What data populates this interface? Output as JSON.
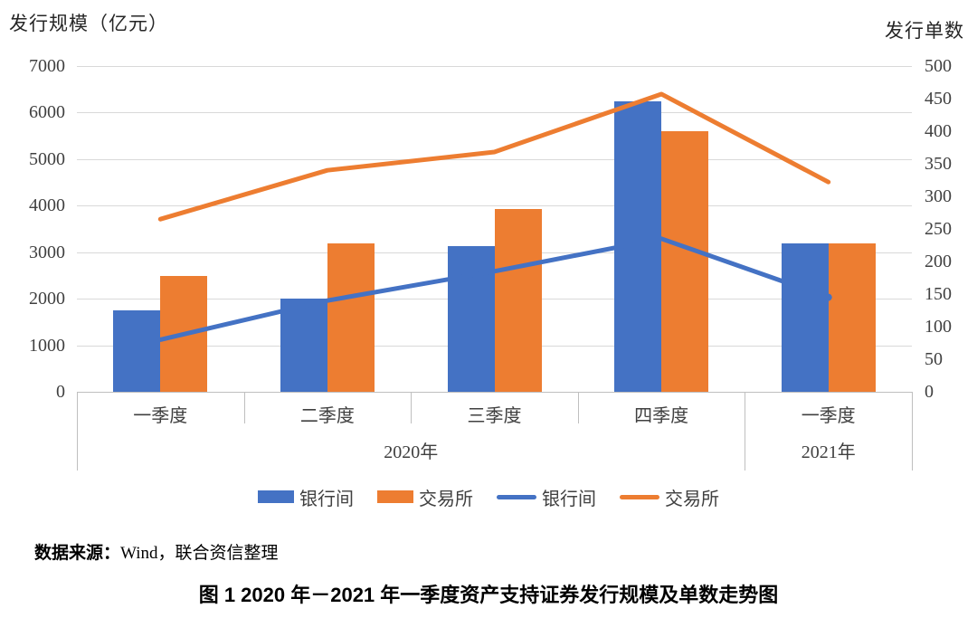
{
  "left_axis": {
    "title": "发行规模（亿元）",
    "ticks": [
      "7000",
      "6000",
      "5000",
      "4000",
      "3000",
      "2000",
      "1000",
      "0"
    ],
    "range": [
      0,
      7000
    ]
  },
  "right_axis": {
    "title": "发行单数",
    "ticks": [
      "500",
      "450",
      "400",
      "350",
      "300",
      "250",
      "200",
      "150",
      "100",
      "50",
      "0"
    ],
    "range": [
      0,
      500
    ]
  },
  "chart_data": {
    "type": "combo-bar-line",
    "title": "图 1 2020 年－2021 年一季度资产支持证券发行规模及单数走势图",
    "categories": [
      "一季度",
      "二季度",
      "三季度",
      "四季度",
      "一季度"
    ],
    "category_groups": [
      {
        "label": "2020年",
        "span": 4
      },
      {
        "label": "2021年",
        "span": 1
      }
    ],
    "bar_series": [
      {
        "name": "银行间",
        "type": "bar",
        "axis": "left",
        "color": "#4472C4",
        "values": [
          1750,
          2000,
          3140,
          6250,
          3190
        ]
      },
      {
        "name": "交易所",
        "type": "bar",
        "axis": "left",
        "color": "#ED7D31",
        "values": [
          2480,
          3190,
          3920,
          5600,
          3190
        ]
      }
    ],
    "line_series": [
      {
        "name": "银行间",
        "type": "line",
        "axis": "right",
        "color": "#4472C4",
        "values": [
          80,
          140,
          185,
          235,
          145
        ],
        "end_dot": true
      },
      {
        "name": "交易所",
        "type": "line",
        "axis": "right",
        "color": "#ED7D31",
        "values": [
          265,
          340,
          368,
          457,
          322
        ],
        "end_dot": false
      }
    ],
    "ylabel_left": "发行规模（亿元）",
    "ylabel_right": "发行单数",
    "ylim_left": [
      0,
      7000
    ],
    "ylim_right": [
      0,
      500
    ],
    "grid": true,
    "legend_position": "bottom"
  },
  "legend": {
    "items": [
      {
        "label": "银行间",
        "swatch": "bar",
        "color": "#4472C4"
      },
      {
        "label": "交易所",
        "swatch": "bar",
        "color": "#ED7D31"
      },
      {
        "label": "银行间",
        "swatch": "line",
        "color": "#4472C4"
      },
      {
        "label": "交易所",
        "swatch": "line",
        "color": "#ED7D31"
      }
    ]
  },
  "source": {
    "prefix": "数据来源：",
    "text": "Wind，联合资信整理"
  },
  "caption": "图 1 2020 年－2021 年一季度资产支持证券发行规模及单数走势图",
  "colors": {
    "bar_blue": "#4472C4",
    "bar_orange": "#ED7D31",
    "gridline": "#d9d9d9",
    "axisline": "#bfbfbf"
  }
}
